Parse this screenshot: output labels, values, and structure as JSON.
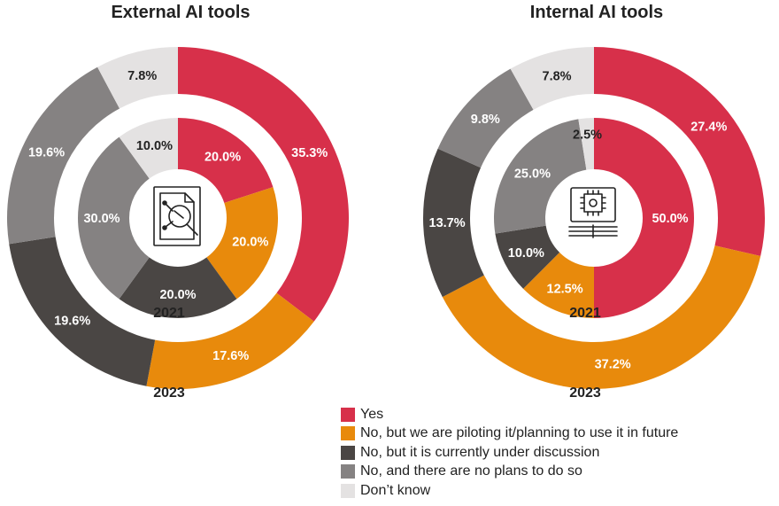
{
  "legend": [
    {
      "label": "Yes",
      "color": "#d7304a"
    },
    {
      "label": "No, but we are piloting it/planning to use it in future",
      "color": "#e88a0c"
    },
    {
      "label": "No, but it is currently under discussion",
      "color": "#4a4644"
    },
    {
      "label": "No, and there are no plans to do so",
      "color": "#858282"
    },
    {
      "label": "Don’t know",
      "color": "#e4e2e2"
    }
  ],
  "chart_data": [
    {
      "type": "pie",
      "title": "External AI tools",
      "icon": "ai-document-analysis-icon",
      "categories": [
        "Yes",
        "No, but we are piloting it/planning to use it in future",
        "No, but it is currently under discussion",
        "No, and there are no plans to do so",
        "Don’t know"
      ],
      "series": [
        {
          "name": "2023",
          "ring": "outer",
          "values": [
            35.3,
            17.6,
            19.6,
            19.6,
            7.8
          ],
          "labels": [
            "35.3%",
            "17.6%",
            "19.6%",
            "19.6%",
            "7.8%"
          ]
        },
        {
          "name": "2021",
          "ring": "inner",
          "values": [
            20.0,
            20.0,
            20.0,
            30.0,
            10.0
          ],
          "labels": [
            "20.0%",
            "20.0%",
            "20.0%",
            "30.0%",
            "10.0%"
          ]
        }
      ]
    },
    {
      "type": "pie",
      "title": "Internal AI tools",
      "icon": "ai-chip-icon",
      "categories": [
        "Yes",
        "No, but we are piloting it/planning to use it in future",
        "No, but it is currently under discussion",
        "No, and there are no plans to do so",
        "Don’t know"
      ],
      "series": [
        {
          "name": "2023",
          "ring": "outer",
          "values": [
            27.4,
            37.2,
            13.7,
            9.8,
            7.8
          ],
          "labels": [
            "27.4%",
            "37.2%",
            "13.7%",
            "9.8%",
            "7.8%"
          ]
        },
        {
          "name": "2021",
          "ring": "inner",
          "values": [
            50.0,
            12.5,
            10.0,
            25.0,
            2.5
          ],
          "labels": [
            "50.0%",
            "12.5%",
            "10.0%",
            "25.0%",
            "2.5%"
          ]
        }
      ]
    }
  ]
}
